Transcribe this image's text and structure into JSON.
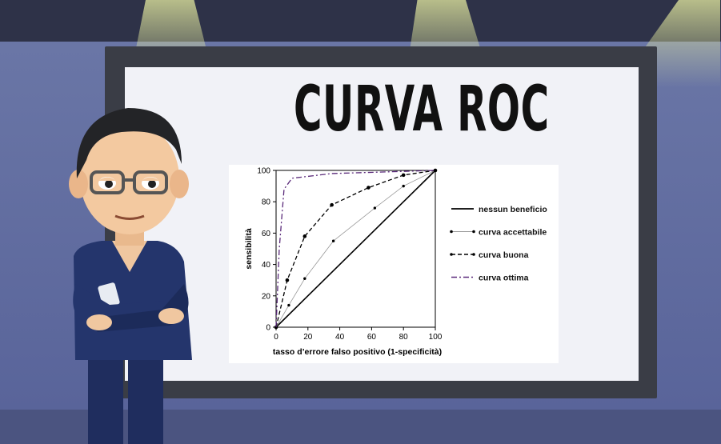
{
  "title": "CURVA ROC",
  "colors": {
    "board": "#f1f2f7",
    "wall": "#5c6894",
    "scrubs": "#24356c",
    "optimal": "#5a2a7a"
  },
  "chart_data": {
    "type": "line",
    "xlabel": "tasso d’errore falso positivo (1-specificità)",
    "ylabel": "sensibilità",
    "xlim": [
      0,
      100
    ],
    "ylim": [
      0,
      100
    ],
    "x_ticks": [
      "0",
      "20",
      "40",
      "60",
      "80",
      "100"
    ],
    "y_ticks": [
      "0",
      "20",
      "40",
      "60",
      "80",
      "100"
    ],
    "grid": false,
    "legend_position": "right",
    "series": [
      {
        "name": "nessun beneficio",
        "style": "solid",
        "color": "#000000",
        "points": [
          [
            0,
            0
          ],
          [
            100,
            100
          ]
        ]
      },
      {
        "name": "curva accettabile",
        "style": "thin-dots",
        "color": "#9a9a9a",
        "points": [
          [
            0,
            0
          ],
          [
            8,
            14
          ],
          [
            18,
            31
          ],
          [
            36,
            55
          ],
          [
            62,
            76
          ],
          [
            80,
            90
          ],
          [
            100,
            100
          ]
        ]
      },
      {
        "name": "curva buona",
        "style": "dashed",
        "color": "#000000",
        "points": [
          [
            0,
            0
          ],
          [
            7,
            30
          ],
          [
            18,
            58
          ],
          [
            35,
            78
          ],
          [
            58,
            89
          ],
          [
            80,
            97
          ],
          [
            100,
            100
          ]
        ]
      },
      {
        "name": "curva ottima",
        "style": "dash-dot",
        "color": "#5a2a7a",
        "points": [
          [
            0,
            0
          ],
          [
            2,
            50
          ],
          [
            5,
            88
          ],
          [
            10,
            95
          ],
          [
            35,
            98
          ],
          [
            100,
            100
          ]
        ]
      }
    ]
  }
}
